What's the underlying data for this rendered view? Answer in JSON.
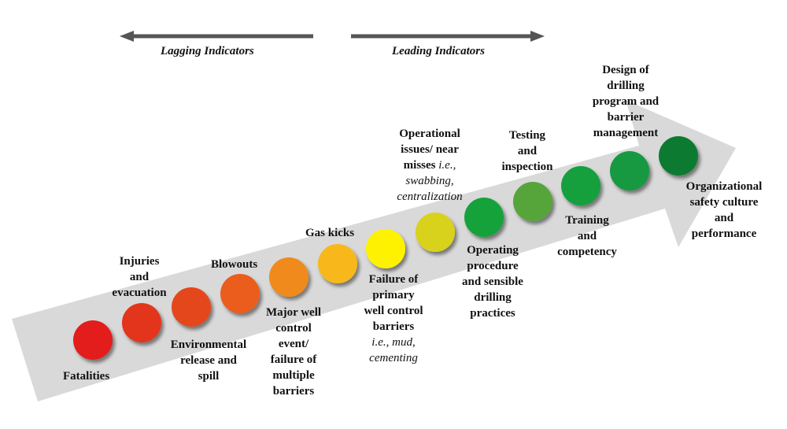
{
  "indicators": {
    "lagging_label": "Lagging Indicators",
    "leading_label": "Leading Indicators"
  },
  "nodes": [
    {
      "id": "fatalities",
      "color": "#e31e1a"
    },
    {
      "id": "injuries",
      "color": "#e2361e"
    },
    {
      "id": "environmental",
      "color": "#e4471d"
    },
    {
      "id": "blowouts",
      "color": "#ea5d1e"
    },
    {
      "id": "major-well",
      "color": "#f08a1e"
    },
    {
      "id": "gas-kicks",
      "color": "#f8b81b"
    },
    {
      "id": "failure-primary",
      "color": "#fff200"
    },
    {
      "id": "operational",
      "color": "#d8d21c"
    },
    {
      "id": "operating-procedure",
      "color": "#17a23a"
    },
    {
      "id": "testing",
      "color": "#57a53a"
    },
    {
      "id": "training",
      "color": "#159f3c"
    },
    {
      "id": "design",
      "color": "#14993f"
    },
    {
      "id": "culture",
      "color": "#0f7a32"
    }
  ],
  "labels": {
    "fatalities": "Fatalities",
    "injuries": [
      "Injuries",
      "and",
      "evacuation"
    ],
    "environmental": [
      "Environmental",
      "release and",
      "spill"
    ],
    "blowouts": "Blowouts",
    "major_well": [
      "Major well",
      "control",
      "event/",
      "failure of",
      "multiple",
      "barriers"
    ],
    "gas_kicks": "Gas kicks",
    "failure_primary": [
      "Failure of",
      "primary",
      "well control",
      "barriers"
    ],
    "failure_primary_eg": [
      "i.e., mud,",
      "cementing"
    ],
    "operational": [
      "Operational",
      "issues/ near"
    ],
    "operational_misses": "misses",
    "operational_eg": [
      "i.e.,",
      "swabbing,",
      "centralization"
    ],
    "operating_procedure": [
      "Operating",
      "procedure",
      "and sensible",
      "drilling",
      "practices"
    ],
    "testing": [
      "Testing",
      "and",
      "inspection"
    ],
    "training": [
      "Training",
      "and",
      "competency"
    ],
    "design": [
      "Design of",
      "drilling",
      "program and",
      "barrier",
      "management"
    ],
    "culture": [
      "Organizational",
      "safety culture",
      "and",
      "performance"
    ]
  }
}
